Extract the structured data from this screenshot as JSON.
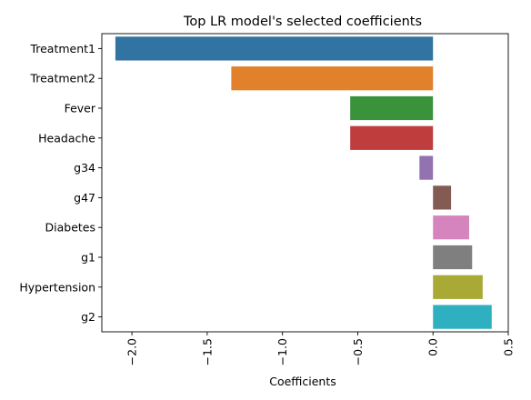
{
  "chart_data": {
    "type": "bar",
    "orientation": "horizontal",
    "title": "Top LR model's selected coefficients",
    "xlabel": "Coefficients",
    "ylabel": "",
    "xlim": [
      -2.2,
      0.5
    ],
    "xticks": [
      -2.0,
      -1.5,
      -1.0,
      -0.5,
      0.0,
      0.5
    ],
    "xtick_labels": [
      "−2.0",
      "−1.5",
      "−1.0",
      "−0.5",
      "0.0",
      "0.5"
    ],
    "categories": [
      "Treatment1",
      "Treatment2",
      "Fever",
      "Headache",
      "g34",
      "g47",
      "Diabetes",
      "g1",
      "Hypertension",
      "g2"
    ],
    "values": [
      -2.11,
      -1.34,
      -0.55,
      -0.55,
      -0.09,
      0.12,
      0.24,
      0.26,
      0.33,
      0.39
    ],
    "colors": [
      "#3274a1",
      "#e1812c",
      "#3a923a",
      "#c03d3e",
      "#9372b2",
      "#845b53",
      "#d684bd",
      "#7f7f7f",
      "#a9aa35",
      "#2eb0c0"
    ],
    "grid": false,
    "legend": "none"
  }
}
